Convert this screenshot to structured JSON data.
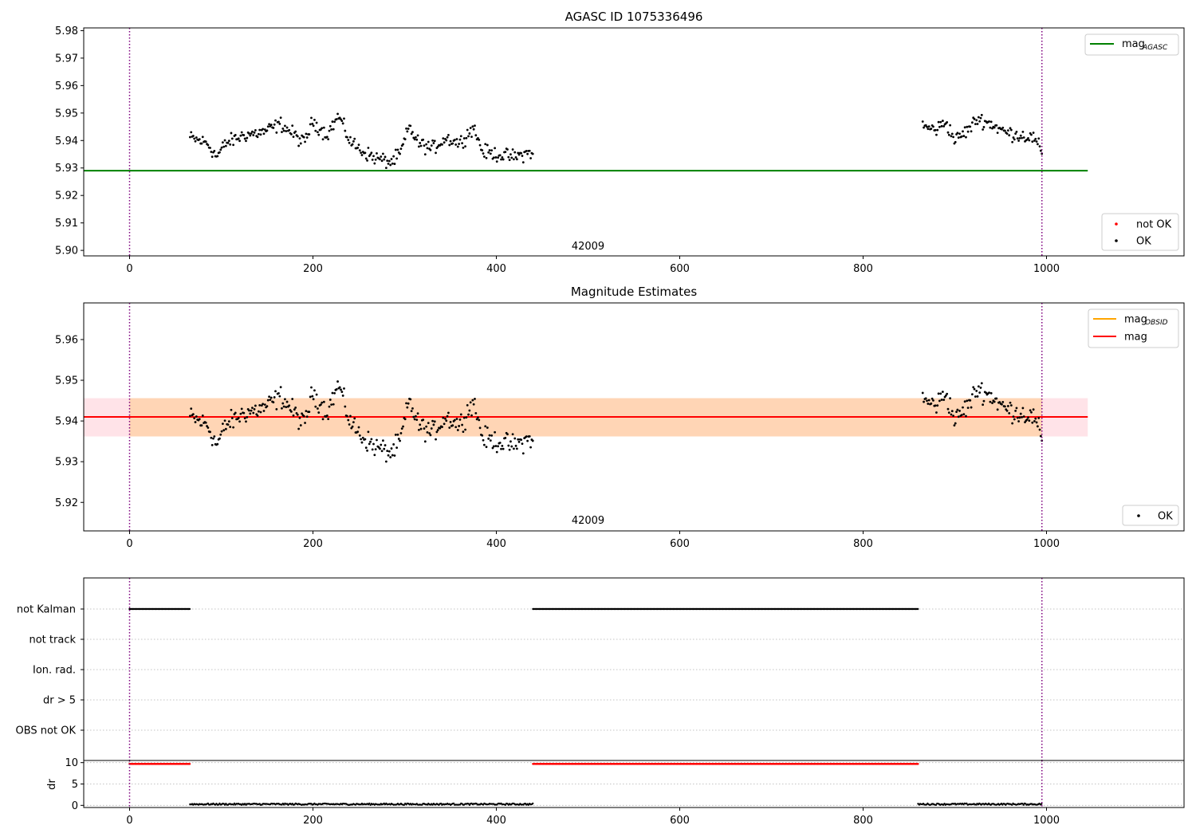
{
  "chart_data": [
    {
      "type": "scatter",
      "title": "AGASC ID 1075336496",
      "xlim": [
        -50,
        1150
      ],
      "ylim": [
        5.898,
        5.981
      ],
      "xticks": [
        0,
        200,
        400,
        600,
        800,
        1000
      ],
      "yticks": [
        5.9,
        5.91,
        5.92,
        5.93,
        5.94,
        5.95,
        5.96,
        5.97,
        5.98
      ],
      "obsid_label": "42009",
      "obsid_label_x": 500,
      "vlines": [
        0,
        995
      ],
      "mag_agasc": {
        "value": 5.929,
        "x_range": [
          -50,
          1045
        ],
        "color": "#008000"
      },
      "legend_upper": [
        {
          "text": "mag",
          "sub": "AGASC",
          "color": "#008000"
        }
      ],
      "legend_lower": [
        {
          "text": "not OK",
          "color": "#ff0000"
        },
        {
          "text": "OK",
          "color": "#000000"
        }
      ],
      "segments": [
        {
          "x_range": [
            66,
            440
          ],
          "profile": [
            [
              66,
              5.941
            ],
            [
              85,
              5.939
            ],
            [
              95,
              5.934
            ],
            [
              105,
              5.939
            ],
            [
              125,
              5.942
            ],
            [
              145,
              5.943
            ],
            [
              165,
              5.946
            ],
            [
              180,
              5.942
            ],
            [
              190,
              5.939
            ],
            [
              200,
              5.947
            ],
            [
              215,
              5.942
            ],
            [
              228,
              5.949
            ],
            [
              240,
              5.94
            ],
            [
              250,
              5.937
            ],
            [
              265,
              5.934
            ],
            [
              285,
              5.932
            ],
            [
              295,
              5.935
            ],
            [
              305,
              5.945
            ],
            [
              315,
              5.939
            ],
            [
              330,
              5.937
            ],
            [
              345,
              5.941
            ],
            [
              360,
              5.939
            ],
            [
              375,
              5.945
            ],
            [
              385,
              5.936
            ],
            [
              400,
              5.935
            ],
            [
              420,
              5.934
            ],
            [
              440,
              5.936
            ]
          ]
        },
        {
          "x_range": [
            865,
            995
          ],
          "profile": [
            [
              865,
              5.945
            ],
            [
              880,
              5.944
            ],
            [
              890,
              5.947
            ],
            [
              900,
              5.94
            ],
            [
              915,
              5.944
            ],
            [
              925,
              5.948
            ],
            [
              940,
              5.946
            ],
            [
              955,
              5.943
            ],
            [
              970,
              5.942
            ],
            [
              985,
              5.941
            ],
            [
              995,
              5.936
            ]
          ]
        }
      ]
    },
    {
      "type": "scatter",
      "title": "Magnitude Estimates",
      "xlim": [
        -50,
        1150
      ],
      "ylim": [
        5.913,
        5.969
      ],
      "xticks": [
        0,
        200,
        400,
        600,
        800,
        1000
      ],
      "yticks": [
        5.92,
        5.93,
        5.94,
        5.95,
        5.96
      ],
      "obsid_label": "42009",
      "obsid_label_x": 500,
      "vlines": [
        0,
        995
      ],
      "mag": {
        "value": 5.941,
        "x_range": [
          -50,
          1045
        ],
        "color": "#ff0000"
      },
      "mag_band": {
        "y_range": [
          5.9362,
          5.9456
        ],
        "x_range": [
          -50,
          1045
        ],
        "color": "#ffc0cb"
      },
      "mag_obsid_band": {
        "y_range": [
          5.9362,
          5.9456
        ],
        "x_range": [
          0,
          995
        ],
        "color": "#ffa500"
      },
      "legend_upper": [
        {
          "text": "mag",
          "sub": "OBSID",
          "color": "#ffa500"
        },
        {
          "text": "mag",
          "sub": "",
          "color": "#ff0000"
        }
      ],
      "legend_lower": [
        {
          "text": "OK",
          "color": "#000000"
        }
      ]
    },
    {
      "type": "scatter",
      "xlim": [
        -50,
        1150
      ],
      "xticks": [
        0,
        200,
        400,
        600,
        800,
        1000
      ],
      "vlines": [
        0,
        995
      ],
      "flags": [
        "not Kalman",
        "not track",
        "Ion. rad.",
        "dr > 5",
        "OBS not OK"
      ],
      "not_kalman_ranges": [
        [
          0,
          66
        ],
        [
          440,
          860
        ]
      ],
      "dr": {
        "ylabel": "dr",
        "ylim": [
          -0.5,
          10.5
        ],
        "yticks": [
          0,
          5,
          10
        ],
        "high_value": 9.7,
        "high_ranges": [
          [
            0,
            66
          ],
          [
            440,
            860
          ]
        ],
        "low_ranges": [
          [
            66,
            440
          ],
          [
            860,
            995
          ]
        ]
      }
    }
  ]
}
